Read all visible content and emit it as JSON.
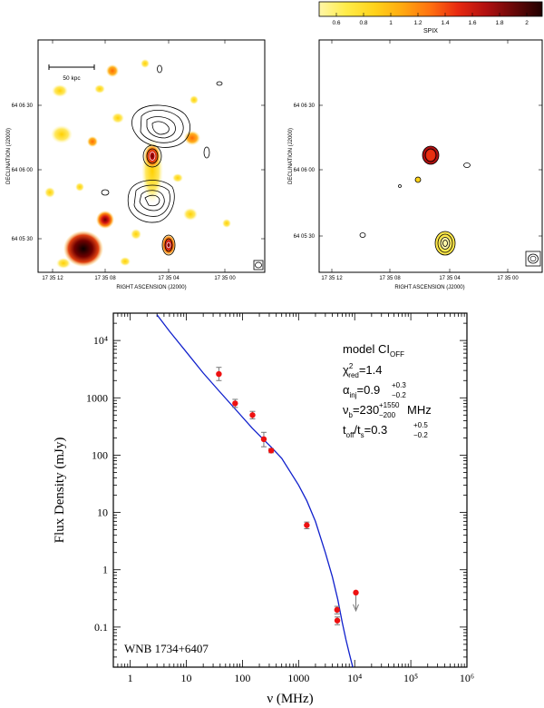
{
  "colorbar": {
    "label": "SPIX",
    "ticks": [
      "0.6",
      "0.8",
      "1",
      "1.2",
      "1.4",
      "1.6",
      "1.8",
      "2"
    ],
    "colors": [
      "#fff6a8",
      "#ffec4a",
      "#ffd21a",
      "#ffaa10",
      "#ff7010",
      "#e82a10",
      "#b01010",
      "#6a0808",
      "#200000"
    ]
  },
  "panel_left": {
    "ylabel": "DECLINATION (J2000)",
    "xlabel": "RIGHT ASCENSION (J2000)",
    "yticks": [
      "64 06 30",
      "64 06 00",
      "64 05 30"
    ],
    "xticks": [
      "17 35 12",
      "17 35 08",
      "17 35 04",
      "17 35 00"
    ],
    "scalebar_label": "50 kpc"
  },
  "panel_right": {
    "ylabel": "DECLINATION (J2000)",
    "xlabel": "RIGHT ASCENSION (J2000)",
    "yticks": [
      "64 06 30",
      "64 06 00",
      "64 05 30"
    ],
    "xticks": [
      "17 35 12",
      "17 35 08",
      "17 35 04",
      "17 35 00"
    ]
  },
  "chart_data": {
    "type": "scatter",
    "title": "",
    "xlabel": "ν (MHz)",
    "ylabel": "Flux Density (mJy)",
    "xscale": "log",
    "yscale": "log",
    "xlim": [
      0.5,
      1000000
    ],
    "ylim": [
      0.02,
      30000
    ],
    "xticks": [
      {
        "v": 1,
        "label": "1"
      },
      {
        "v": 10,
        "label": "10"
      },
      {
        "v": 100,
        "label": "100"
      },
      {
        "v": 1000,
        "label": "1000"
      },
      {
        "v": 10000,
        "label": "10⁴"
      },
      {
        "v": 100000,
        "label": "10⁵"
      },
      {
        "v": 1000000,
        "label": "10⁶"
      }
    ],
    "yticks": [
      {
        "v": 0.1,
        "label": "0.1"
      },
      {
        "v": 1,
        "label": "1"
      },
      {
        "v": 10,
        "label": "10"
      },
      {
        "v": 100,
        "label": "100"
      },
      {
        "v": 1000,
        "label": "1000"
      },
      {
        "v": 10000,
        "label": "10⁴"
      }
    ],
    "points": [
      {
        "x": 38,
        "y": 2600,
        "err": [
          2000,
          3400
        ]
      },
      {
        "x": 74,
        "y": 800,
        "err": [
          680,
          940
        ]
      },
      {
        "x": 151,
        "y": 500,
        "err": [
          430,
          580
        ]
      },
      {
        "x": 240,
        "y": 190,
        "err": [
          140,
          250
        ]
      },
      {
        "x": 325,
        "y": 120,
        "err": [
          110,
          130
        ]
      },
      {
        "x": 1400,
        "y": 6,
        "err": [
          5.2,
          6.8
        ]
      },
      {
        "x": 4850,
        "y": 0.2,
        "err": [
          0.17,
          0.23
        ]
      },
      {
        "x": 4900,
        "y": 0.13,
        "err": [
          0.11,
          0.15
        ]
      }
    ],
    "upper_limits": [
      {
        "x": 10500,
        "y": 0.4
      }
    ],
    "model_curve": {
      "name": "model CI_OFF",
      "color": "#1020cc",
      "x": [
        3,
        5,
        10,
        20,
        38,
        74,
        150,
        240,
        325,
        500,
        1000,
        1400,
        2000,
        3000,
        4000,
        5000,
        6000,
        7000,
        8000,
        9000,
        10000
      ],
      "y": [
        28000,
        14500,
        6300,
        2700,
        1330,
        640,
        295,
        185,
        138,
        88,
        30,
        16,
        7,
        2,
        0.75,
        0.3,
        0.12,
        0.06,
        0.035,
        0.022,
        0.015
      ]
    },
    "annotations": {
      "model_label": "model CI",
      "model_sub": "OFF",
      "chi_label": "χ",
      "chi_sup": "2",
      "chi_sub": "red",
      "chi_value": "=1.4",
      "alpha_label": "α",
      "alpha_sub": "inj",
      "alpha_value": "=0.9",
      "alpha_up": "+0.3",
      "alpha_down": "−0.2",
      "nu_label": "ν",
      "nu_sub": "b",
      "nu_value": "=230",
      "nu_up": "+1550",
      "nu_down": "−200",
      "nu_unit": "MHz",
      "t_label": "t",
      "t_sub1": "off",
      "t_mid": "/t",
      "t_sub2": "s",
      "t_value": "=0.3",
      "t_up": "+0.5",
      "t_down": "−0.2",
      "source_name": "WNB 1734+6407"
    }
  }
}
